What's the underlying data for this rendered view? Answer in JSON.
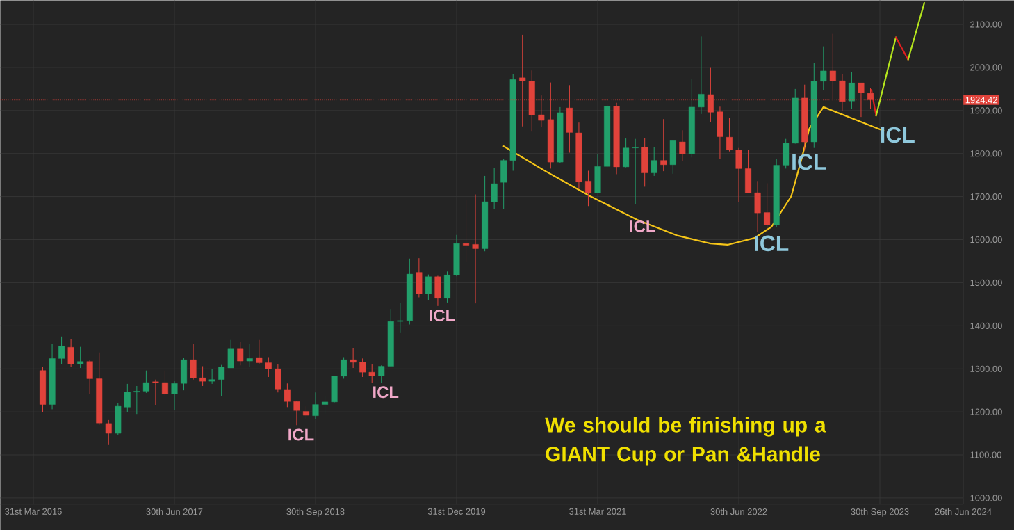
{
  "chart_data": {
    "type": "candlestick",
    "x": [
      "2016-04-30",
      "2016-05-31",
      "2016-06-30",
      "2016-07-31",
      "2016-08-31",
      "2016-09-30",
      "2016-10-31",
      "2016-11-30",
      "2016-12-31",
      "2017-01-31",
      "2017-02-28",
      "2017-03-31",
      "2017-04-30",
      "2017-05-31",
      "2017-06-30",
      "2017-07-31",
      "2017-08-31",
      "2017-09-30",
      "2017-10-31",
      "2017-11-30",
      "2017-12-31",
      "2018-01-31",
      "2018-02-28",
      "2018-03-31",
      "2018-04-30",
      "2018-05-31",
      "2018-06-30",
      "2018-07-31",
      "2018-08-31",
      "2018-09-30",
      "2018-10-31",
      "2018-11-30",
      "2018-12-31",
      "2019-01-31",
      "2019-02-28",
      "2019-03-31",
      "2019-04-30",
      "2019-05-31",
      "2019-06-30",
      "2019-07-31",
      "2019-08-31",
      "2019-09-30",
      "2019-10-31",
      "2019-11-30",
      "2019-12-31",
      "2020-01-31",
      "2020-02-29",
      "2020-03-31",
      "2020-04-30",
      "2020-05-31",
      "2020-06-30",
      "2020-07-31",
      "2020-08-31",
      "2020-09-30",
      "2020-10-31",
      "2020-11-30",
      "2020-12-31",
      "2021-01-31",
      "2021-02-28",
      "2021-03-31",
      "2021-04-30",
      "2021-05-31",
      "2021-06-30",
      "2021-07-31",
      "2021-08-31",
      "2021-09-30",
      "2021-10-31",
      "2021-11-30",
      "2021-12-31",
      "2022-01-31",
      "2022-02-28",
      "2022-03-31",
      "2022-04-30",
      "2022-05-31",
      "2022-06-30",
      "2022-07-31",
      "2022-08-31",
      "2022-09-30",
      "2022-10-31",
      "2022-11-30",
      "2022-12-31",
      "2023-01-31",
      "2023-02-28",
      "2023-03-31",
      "2023-04-30",
      "2023-05-31",
      "2023-06-30",
      "2023-07-31",
      "2023-08-31"
    ],
    "ohlc": [
      [
        1296,
        1304,
        1200,
        1217
      ],
      [
        1217,
        1358,
        1206,
        1324
      ],
      [
        1324,
        1375,
        1311,
        1353
      ],
      [
        1350,
        1369,
        1304,
        1311
      ],
      [
        1311,
        1351,
        1302,
        1317
      ],
      [
        1317,
        1321,
        1242,
        1277
      ],
      [
        1277,
        1338,
        1170,
        1174
      ],
      [
        1173,
        1181,
        1123,
        1150
      ],
      [
        1150,
        1220,
        1146,
        1213
      ],
      [
        1211,
        1265,
        1199,
        1246
      ],
      [
        1246,
        1260,
        1195,
        1248
      ],
      [
        1248,
        1296,
        1244,
        1268
      ],
      [
        1270,
        1275,
        1215,
        1268
      ],
      [
        1268,
        1296,
        1238,
        1242
      ],
      [
        1242,
        1271,
        1204,
        1266
      ],
      [
        1266,
        1326,
        1250,
        1321
      ],
      [
        1321,
        1358,
        1275,
        1279
      ],
      [
        1279,
        1306,
        1260,
        1271
      ],
      [
        1271,
        1300,
        1265,
        1275
      ],
      [
        1275,
        1309,
        1237,
        1304
      ],
      [
        1302,
        1367,
        1302,
        1346
      ],
      [
        1346,
        1363,
        1308,
        1318
      ],
      [
        1318,
        1358,
        1304,
        1324
      ],
      [
        1326,
        1367,
        1311,
        1314
      ],
      [
        1314,
        1327,
        1281,
        1300
      ],
      [
        1300,
        1310,
        1245,
        1253
      ],
      [
        1252,
        1266,
        1211,
        1224
      ],
      [
        1224,
        1226,
        1169,
        1203
      ],
      [
        1201,
        1213,
        1182,
        1192
      ],
      [
        1191,
        1245,
        1184,
        1217
      ],
      [
        1217,
        1238,
        1196,
        1223
      ],
      [
        1223,
        1283,
        1222,
        1283
      ],
      [
        1283,
        1327,
        1277,
        1321
      ],
      [
        1321,
        1348,
        1302,
        1315
      ],
      [
        1315,
        1324,
        1281,
        1292
      ],
      [
        1292,
        1310,
        1267,
        1284
      ],
      [
        1284,
        1308,
        1268,
        1306
      ],
      [
        1306,
        1439,
        1306,
        1410
      ],
      [
        1410,
        1453,
        1383,
        1412
      ],
      [
        1412,
        1556,
        1403,
        1520
      ],
      [
        1524,
        1557,
        1466,
        1474
      ],
      [
        1474,
        1519,
        1460,
        1514
      ],
      [
        1514,
        1516,
        1446,
        1464
      ],
      [
        1464,
        1526,
        1454,
        1518
      ],
      [
        1518,
        1611,
        1515,
        1591
      ],
      [
        1591,
        1691,
        1549,
        1587
      ],
      [
        1589,
        1705,
        1452,
        1579
      ],
      [
        1579,
        1748,
        1573,
        1688
      ],
      [
        1688,
        1766,
        1671,
        1730
      ],
      [
        1733,
        1787,
        1671,
        1784
      ],
      [
        1784,
        1984,
        1760,
        1972
      ],
      [
        1976,
        2076,
        1863,
        1969
      ],
      [
        1968,
        1993,
        1851,
        1890
      ],
      [
        1890,
        1935,
        1861,
        1877
      ],
      [
        1879,
        1965,
        1765,
        1780
      ],
      [
        1780,
        1908,
        1778,
        1895
      ],
      [
        1906,
        1959,
        1802,
        1849
      ],
      [
        1848,
        1872,
        1718,
        1734
      ],
      [
        1736,
        1760,
        1678,
        1709
      ],
      [
        1709,
        1798,
        1709,
        1770
      ],
      [
        1770,
        1914,
        1768,
        1910
      ],
      [
        1910,
        1918,
        1752,
        1769
      ],
      [
        1769,
        1835,
        1768,
        1813
      ],
      [
        1813,
        1834,
        1683,
        1814
      ],
      [
        1815,
        1836,
        1723,
        1755
      ],
      [
        1755,
        1815,
        1748,
        1784
      ],
      [
        1784,
        1880,
        1759,
        1774
      ],
      [
        1774,
        1831,
        1753,
        1830
      ],
      [
        1827,
        1854,
        1783,
        1799
      ],
      [
        1799,
        1974,
        1791,
        1908
      ],
      [
        1908,
        2072,
        1892,
        1938
      ],
      [
        1937,
        1999,
        1873,
        1896
      ],
      [
        1897,
        1909,
        1788,
        1839
      ],
      [
        1838,
        1882,
        1805,
        1809
      ],
      [
        1808,
        1813,
        1687,
        1765
      ],
      [
        1765,
        1808,
        1709,
        1709
      ],
      [
        1709,
        1736,
        1617,
        1662
      ],
      [
        1663,
        1731,
        1618,
        1634
      ],
      [
        1634,
        1787,
        1629,
        1773
      ],
      [
        1773,
        1834,
        1765,
        1824
      ],
      [
        1824,
        1950,
        1823,
        1929
      ],
      [
        1929,
        1960,
        1807,
        1827
      ],
      [
        1827,
        2011,
        1813,
        1968
      ],
      [
        1968,
        2049,
        1947,
        1992
      ],
      [
        1992,
        2078,
        1923,
        1969
      ],
      [
        1969,
        1985,
        1900,
        1921
      ],
      [
        1922,
        1989,
        1903,
        1964
      ],
      [
        1964,
        1964,
        1885,
        1941
      ],
      [
        1940,
        1953,
        1903,
        1925
      ]
    ],
    "colors": [
      "#e1433b",
      "#22a06b",
      "#22a06b",
      "#e1433b",
      "#22a06b",
      "#e1433b",
      "#e1433b",
      "#e1433b",
      "#22a06b",
      "#22a06b",
      "#22a06b",
      "#22a06b",
      "#e1433b",
      "#e1433b",
      "#22a06b",
      "#22a06b",
      "#e1433b",
      "#e1433b",
      "#22a06b",
      "#22a06b",
      "#22a06b",
      "#e1433b",
      "#22a06b",
      "#e1433b",
      "#e1433b",
      "#e1433b",
      "#e1433b",
      "#e1433b",
      "#e1433b",
      "#22a06b",
      "#22a06b",
      "#22a06b",
      "#22a06b",
      "#e1433b",
      "#e1433b",
      "#e1433b",
      "#22a06b",
      "#22a06b",
      "#22a06b",
      "#22a06b",
      "#e1433b",
      "#22a06b",
      "#e1433b",
      "#22a06b",
      "#22a06b",
      "#e1433b",
      "#e1433b",
      "#22a06b",
      "#22a06b",
      "#22a06b",
      "#22a06b",
      "#e1433b",
      "#e1433b",
      "#e1433b",
      "#e1433b",
      "#22a06b",
      "#e1433b",
      "#e1433b",
      "#e1433b",
      "#22a06b",
      "#22a06b",
      "#e1433b",
      "#22a06b",
      "#22a06b",
      "#e1433b",
      "#22a06b",
      "#e1433b",
      "#22a06b",
      "#e1433b",
      "#22a06b",
      "#22a06b",
      "#e1433b",
      "#e1433b",
      "#e1433b",
      "#e1433b",
      "#e1433b",
      "#e1433b",
      "#e1433b",
      "#22a06b",
      "#22a06b",
      "#22a06b",
      "#e1433b",
      "#22a06b",
      "#22a06b",
      "#e1433b",
      "#e1433b",
      "#22a06b",
      "#e1433b",
      "#e1433b"
    ],
    "series": [
      {
        "type": "line",
        "color": "#f5c518",
        "x": [
          "2020-05-31",
          "2020-10-09",
          "2021-03-06",
          "2021-08-06",
          "2021-12-12",
          "2022-03-31",
          "2022-05-25",
          "2022-08-21",
          "2022-10-15",
          "2022-12-18",
          "2023-01-18",
          "2023-02-14",
          "2023-03-31",
          "2023-10-12"
        ],
        "values": [
          1817,
          1761,
          1701,
          1646,
          1610,
          1591,
          1588,
          1604,
          1630,
          1701,
          1780,
          1858,
          1908,
          1853
        ]
      },
      {
        "type": "line",
        "color": "#e02020",
        "x": [
          "2023-09-03",
          "2023-09-18"
        ],
        "values": [
          1948,
          1888
        ]
      },
      {
        "type": "line",
        "color": "#b5e61d",
        "x": [
          "2023-09-18",
          "2023-11-21"
        ],
        "values": [
          1888,
          2070
        ]
      },
      {
        "type": "line",
        "color": "#e02020",
        "x": [
          "2023-11-21",
          "2023-12-31"
        ],
        "values": [
          2070,
          2018
        ]
      },
      {
        "type": "line",
        "color": "#b5e61d",
        "x": [
          "2023-12-31",
          "2024-02-21"
        ],
        "values": [
          2018,
          2150
        ]
      }
    ],
    "xlim": [
      "2015-12-15",
      "2024-06-26"
    ],
    "xticks": [
      {
        "value": "2016-03-31",
        "label": "31st Mar 2016"
      },
      {
        "value": "2017-06-30",
        "label": "30th Jun 2017"
      },
      {
        "value": "2018-09-30",
        "label": "30th Sep 2018"
      },
      {
        "value": "2019-12-31",
        "label": "31st Dec 2019"
      },
      {
        "value": "2021-03-31",
        "label": "31st Mar 2021"
      },
      {
        "value": "2022-06-30",
        "label": "30th Jun 2022"
      },
      {
        "value": "2023-09-30",
        "label": "30th Sep 2023"
      },
      {
        "value": "2024-06-26",
        "label": "26th Jun 2024"
      }
    ],
    "ylim": [
      985,
      2156
    ],
    "yticks": [
      {
        "value": 1000,
        "label": "1000.00"
      },
      {
        "value": 1100,
        "label": "1100.00"
      },
      {
        "value": 1200,
        "label": "1200.00"
      },
      {
        "value": 1300,
        "label": "1300.00"
      },
      {
        "value": 1400,
        "label": "1400.00"
      },
      {
        "value": 1500,
        "label": "1500.00"
      },
      {
        "value": 1600,
        "label": "1600.00"
      },
      {
        "value": 1700,
        "label": "1700.00"
      },
      {
        "value": 1800,
        "label": "1800.00"
      },
      {
        "value": 1900,
        "label": "1900.00"
      },
      {
        "value": 2000,
        "label": "2000.00"
      },
      {
        "value": 2100,
        "label": "2100.00"
      }
    ],
    "grid": true,
    "ref_lines": [
      {
        "axis": "y",
        "value": 1924.42,
        "label": "1924.42",
        "color": "#e1433b",
        "line_style": "dotted"
      }
    ],
    "annotations": [
      {
        "text": "ICL",
        "x": "2018-07-31",
        "y": 1169
      },
      {
        "text": "ICL",
        "x": "2019-04-30",
        "y": 1268
      },
      {
        "text": "ICL",
        "x": "2019-10-31",
        "y": 1446
      },
      {
        "text": "ICL",
        "x": "2021-08-23",
        "y": 1631
      },
      {
        "text": "ICL",
        "x": "2022-09-30",
        "y": 1618
      },
      {
        "text": "ICL",
        "x": "2023-01-31",
        "y": 1807
      },
      {
        "text": "ICL",
        "x": "2023-10-12",
        "y": 1853
      },
      "We should be finishing up a GIANT Cup or Pan &Handle"
    ]
  }
}
